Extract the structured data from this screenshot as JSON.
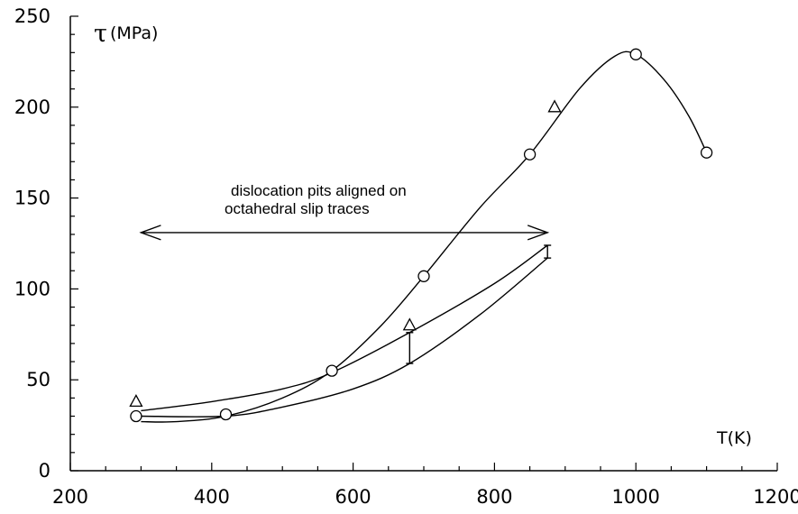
{
  "chart_data": {
    "type": "line",
    "ylabel_symbol": "τ",
    "ylabel_unit": "(MPa)",
    "xlabel": "T(K)",
    "xlim": [
      200,
      1200
    ],
    "ylim": [
      0,
      250
    ],
    "x_ticks": [
      "200",
      "400",
      "600",
      "800",
      "1000",
      "1200"
    ],
    "y_ticks": [
      "0",
      "50",
      "100",
      "150",
      "200",
      "250"
    ],
    "annotation": {
      "line1": "dislocation pits aligned on",
      "line2": "octahedral slip traces",
      "x_from": 300,
      "x_to": 875,
      "y": 131
    },
    "series": [
      {
        "marker": "circle",
        "points": [
          [
            293,
            30
          ],
          [
            420,
            31
          ],
          [
            570,
            55
          ],
          [
            700,
            107
          ],
          [
            850,
            174
          ],
          [
            1000,
            229
          ],
          [
            1100,
            175
          ]
        ],
        "curve": [
          [
            300,
            27
          ],
          [
            350,
            27
          ],
          [
            420,
            30
          ],
          [
            500,
            40
          ],
          [
            570,
            55
          ],
          [
            640,
            80
          ],
          [
            700,
            107
          ],
          [
            780,
            145
          ],
          [
            850,
            174
          ],
          [
            920,
            210
          ],
          [
            970,
            228
          ],
          [
            1000,
            229
          ],
          [
            1040,
            215
          ],
          [
            1075,
            195
          ],
          [
            1100,
            175
          ]
        ]
      },
      {
        "marker": "triangle",
        "points": [
          [
            293,
            38
          ],
          [
            680,
            80
          ],
          [
            885,
            200
          ]
        ],
        "curve": []
      },
      {
        "marker": "none",
        "curve": [
          [
            300,
            33
          ],
          [
            400,
            38
          ],
          [
            500,
            45
          ],
          [
            570,
            54
          ],
          [
            680,
            76
          ],
          [
            800,
            103
          ],
          [
            875,
            124
          ]
        ]
      },
      {
        "marker": "none",
        "curve": [
          [
            300,
            30
          ],
          [
            420,
            30
          ],
          [
            500,
            35
          ],
          [
            600,
            45
          ],
          [
            680,
            59
          ],
          [
            780,
            86
          ],
          [
            875,
            117
          ]
        ]
      }
    ],
    "error_bars": [
      {
        "x": 680,
        "low": 59,
        "high": 76
      },
      {
        "x": 875,
        "low": 117,
        "high": 124
      }
    ],
    "grid": false,
    "legend": "none"
  }
}
